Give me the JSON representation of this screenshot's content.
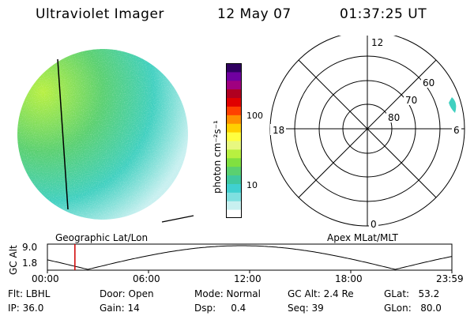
{
  "header": {
    "title": "Ultraviolet Imager",
    "date": "12 May 07",
    "time": "01:37:25 UT"
  },
  "left_panel": {
    "caption": "Geographic Lat/Lon"
  },
  "right_panel": {
    "caption": "Apex MLat/MLT",
    "mlt_labels": {
      "top": "12",
      "left": "18",
      "right": "6",
      "bottom": "0"
    },
    "lat_labels": [
      "60",
      "70",
      "80"
    ]
  },
  "colorbar": {
    "label": "photon cm⁻²s⁻¹",
    "ticks": [
      "100",
      "10"
    ],
    "colors": [
      "#ffffff",
      "#c8f0f0",
      "#7fe0e0",
      "#40d0d0",
      "#40c8a0",
      "#5ad070",
      "#80e040",
      "#b8f040",
      "#e8f880",
      "#ffff40",
      "#ffd000",
      "#ff9000",
      "#ff4000",
      "#e00000",
      "#b00020",
      "#a00080",
      "#7000a0",
      "#300060"
    ]
  },
  "orbit": {
    "ylabel": "GC Alt",
    "ytick_high": "9.0",
    "ytick_low": "1.8",
    "xticks": [
      "00:00",
      "06:00",
      "12:00",
      "18:00",
      "23:59"
    ],
    "current_fraction": 0.068
  },
  "status": {
    "flt": "Flt: LBHL",
    "ip": "IP: 36.0",
    "door": "Door: Open",
    "gain": "Gain: 14",
    "mode": "Mode: Normal",
    "dsp": "Dsp:     0.4",
    "gcalt": "GC Alt: 2.4 Re",
    "seq": "Seq: 39",
    "glat": "GLat:   53.2",
    "glon": "GLon:   80.0"
  }
}
